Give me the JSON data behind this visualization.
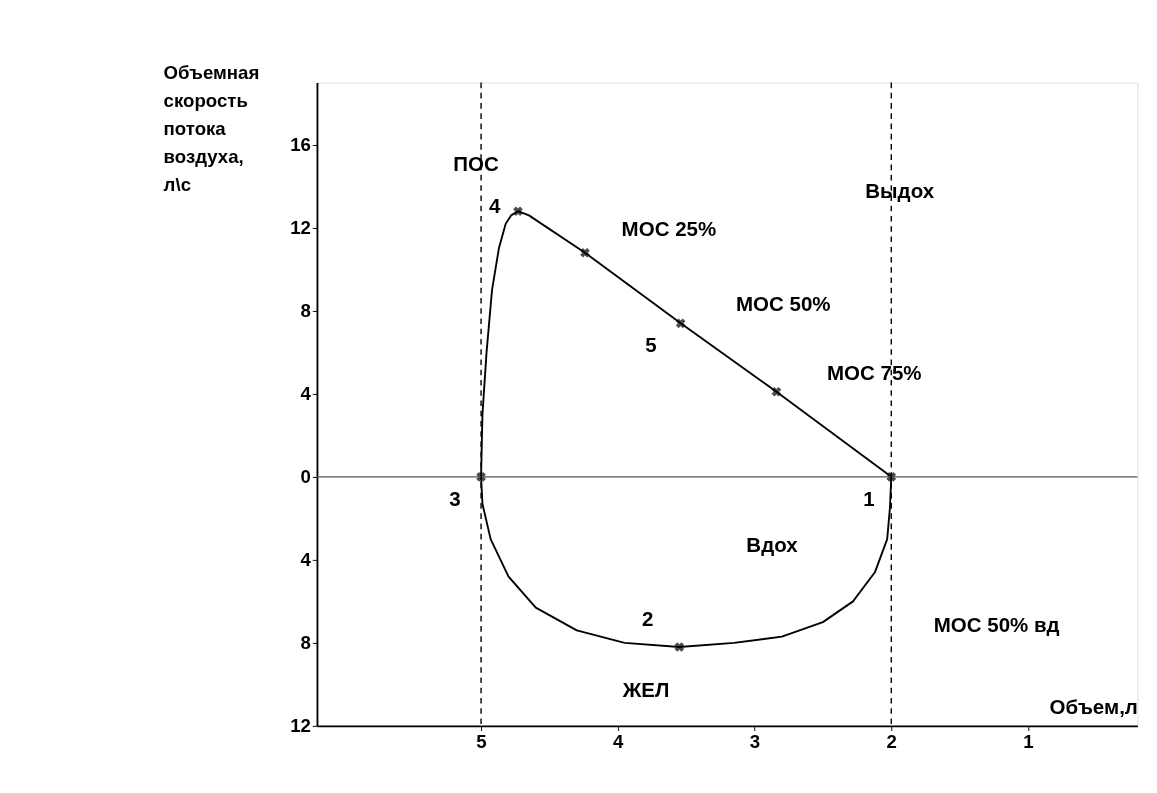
{
  "chart_data": {
    "type": "line",
    "xlabel": "Объем,л",
    "ylabel": "Объемная скорость потока воздуха, л\\с",
    "xlim": [
      6.2,
      0.2
    ],
    "xticks": [
      5,
      4,
      3,
      2,
      1
    ],
    "ylim": [
      -12,
      19
    ],
    "yticks": [
      {
        "value": -12,
        "label": "12"
      },
      {
        "value": -8,
        "label": "8"
      },
      {
        "value": -4,
        "label": "4"
      },
      0,
      4,
      8,
      12,
      16
    ],
    "grid": false,
    "series": [
      {
        "color": "#000000",
        "x": [
          5.0,
          4.99,
          4.96,
          4.92,
          4.87,
          4.82,
          4.78,
          4.73,
          4.65,
          4.24,
          3.54,
          2.84,
          2.0
        ],
        "values": [
          0,
          3,
          6,
          9,
          11,
          12.2,
          12.6,
          12.8,
          12.6,
          10.8,
          7.4,
          4.1,
          0
        ]
      },
      {
        "color": "#000000",
        "x": [
          2.0,
          2.01,
          2.03,
          2.12,
          2.28,
          2.5,
          2.8,
          3.15,
          3.55,
          3.95,
          4.3,
          4.6,
          4.8,
          4.93,
          4.99,
          5.0
        ],
        "values": [
          0,
          -1.5,
          -3,
          -4.6,
          -6,
          -7,
          -7.7,
          -8.0,
          -8.2,
          -8.0,
          -7.4,
          -6.3,
          -4.8,
          -3.0,
          -1.3,
          0
        ]
      },
      {
        "type": "scatter",
        "marker": "cross",
        "color": "#000000",
        "x": [
          5.0,
          4.73,
          4.24,
          3.54,
          2.84,
          2.0,
          3.55
        ],
        "values": [
          0,
          12.8,
          10.8,
          7.4,
          4.1,
          0,
          -8.2
        ]
      }
    ],
    "ref_lines": [
      {
        "axis": "y",
        "value": 0,
        "color": "#555555",
        "line_style": "solid"
      },
      {
        "axis": "x",
        "value": 5,
        "color": "#000000",
        "line_style": "dashed"
      },
      {
        "axis": "x",
        "value": 2,
        "color": "#000000",
        "line_style": "dashed"
      }
    ],
    "annotations": [
      {
        "text": "ПОС",
        "x": 4.73,
        "y": 12.8
      },
      {
        "text": "4",
        "x": 4.73,
        "y": 12.8
      },
      {
        "text": "МОС 25%",
        "x": 4.24,
        "y": 10.8
      },
      {
        "text": "МОС 50%",
        "x": 3.54,
        "y": 7.4
      },
      {
        "text": "5",
        "x": 3.54,
        "y": 7.4
      },
      {
        "text": "МОС 75%",
        "x": 2.84,
        "y": 4.1
      },
      {
        "text": "3",
        "x": 5.0,
        "y": 0
      },
      {
        "text": "1",
        "x": 2.0,
        "y": 0
      },
      {
        "text": "2",
        "x": 3.55,
        "y": -8.2
      },
      "МОС 50% вд",
      "Выдох",
      "Вдох",
      "ЖЕЛ"
    ]
  }
}
